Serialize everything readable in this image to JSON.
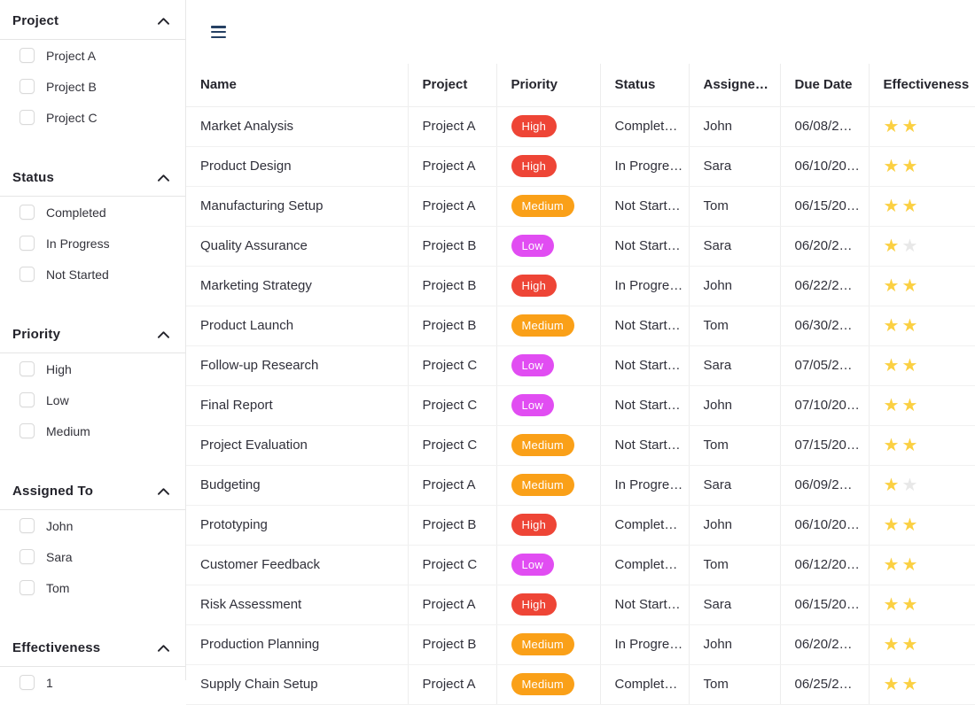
{
  "colors": {
    "priority_high": "#EE4536",
    "priority_medium": "#FAA018",
    "priority_low": "#E14DF2",
    "star_gold": "#FBD042",
    "star_inactive": "#E8E8E8",
    "menu_icon": "#254063",
    "divider": "#E5E5E5"
  },
  "icons": {
    "star": "★",
    "section_chevron": "chevron-up",
    "menu": "hamburger"
  },
  "topbar": {
    "menu_button": "menu"
  },
  "sidebar": {
    "sections": [
      {
        "title": "Project",
        "items": [
          {
            "label": "Project A",
            "checked": false
          },
          {
            "label": "Project B",
            "checked": false
          },
          {
            "label": "Project C",
            "checked": false
          }
        ]
      },
      {
        "title": "Status",
        "items": [
          {
            "label": "Completed",
            "checked": false
          },
          {
            "label": "In Progress",
            "checked": false
          },
          {
            "label": "Not Started",
            "checked": false
          }
        ]
      },
      {
        "title": "Priority",
        "items": [
          {
            "label": "High",
            "checked": false
          },
          {
            "label": "Low",
            "checked": false
          },
          {
            "label": "Medium",
            "checked": false
          }
        ]
      },
      {
        "title": "Assigned To",
        "items": [
          {
            "label": "John",
            "checked": false
          },
          {
            "label": "Sara",
            "checked": false
          },
          {
            "label": "Tom",
            "checked": false
          }
        ]
      },
      {
        "title": "Effectiveness",
        "items": [
          {
            "label": "1",
            "checked": false
          }
        ]
      }
    ]
  },
  "table": {
    "columns": [
      "Name",
      "Project",
      "Priority",
      "Status",
      "Assigne…",
      "Due Date",
      "Effectiveness"
    ],
    "rows": [
      {
        "name": "Market Analysis",
        "project": "Project A",
        "priority": "High",
        "status": "Complet…",
        "assignee": "John",
        "due": "06/08/2…",
        "stars": [
          "gold",
          "gold"
        ]
      },
      {
        "name": "Product Design",
        "project": "Project A",
        "priority": "High",
        "status": "In Progre…",
        "assignee": "Sara",
        "due": "06/10/20…",
        "stars": [
          "gold",
          "gold"
        ]
      },
      {
        "name": "Manufacturing Setup",
        "project": "Project A",
        "priority": "Medium",
        "status": "Not Start…",
        "assignee": "Tom",
        "due": "06/15/20…",
        "stars": [
          "gold",
          "gold"
        ]
      },
      {
        "name": "Quality Assurance",
        "project": "Project B",
        "priority": "Low",
        "status": "Not Start…",
        "assignee": "Sara",
        "due": "06/20/2…",
        "stars": [
          "gold",
          "gray"
        ]
      },
      {
        "name": "Marketing Strategy",
        "project": "Project B",
        "priority": "High",
        "status": "In Progre…",
        "assignee": "John",
        "due": "06/22/2…",
        "stars": [
          "gold",
          "gold"
        ]
      },
      {
        "name": "Product Launch",
        "project": "Project B",
        "priority": "Medium",
        "status": "Not Start…",
        "assignee": "Tom",
        "due": "06/30/2…",
        "stars": [
          "gold",
          "gold"
        ]
      },
      {
        "name": "Follow-up Research",
        "project": "Project C",
        "priority": "Low",
        "status": "Not Start…",
        "assignee": "Sara",
        "due": "07/05/2…",
        "stars": [
          "gold",
          "gold"
        ]
      },
      {
        "name": "Final Report",
        "project": "Project C",
        "priority": "Low",
        "status": "Not Start…",
        "assignee": "John",
        "due": "07/10/20…",
        "stars": [
          "gold",
          "gold"
        ]
      },
      {
        "name": "Project Evaluation",
        "project": "Project C",
        "priority": "Medium",
        "status": "Not Start…",
        "assignee": "Tom",
        "due": "07/15/20…",
        "stars": [
          "gold",
          "gold"
        ]
      },
      {
        "name": "Budgeting",
        "project": "Project A",
        "priority": "Medium",
        "status": "In Progre…",
        "assignee": "Sara",
        "due": "06/09/2…",
        "stars": [
          "gold",
          "gray"
        ]
      },
      {
        "name": "Prototyping",
        "project": "Project B",
        "priority": "High",
        "status": "Complet…",
        "assignee": "John",
        "due": "06/10/20…",
        "stars": [
          "gold",
          "gold"
        ]
      },
      {
        "name": "Customer Feedback",
        "project": "Project C",
        "priority": "Low",
        "status": "Complet…",
        "assignee": "Tom",
        "due": "06/12/20…",
        "stars": [
          "gold",
          "gold"
        ]
      },
      {
        "name": "Risk Assessment",
        "project": "Project A",
        "priority": "High",
        "status": "Not Start…",
        "assignee": "Sara",
        "due": "06/15/20…",
        "stars": [
          "gold",
          "gold"
        ]
      },
      {
        "name": "Production Planning",
        "project": "Project B",
        "priority": "Medium",
        "status": "In Progre…",
        "assignee": "John",
        "due": "06/20/2…",
        "stars": [
          "gold",
          "gold"
        ]
      },
      {
        "name": "Supply Chain Setup",
        "project": "Project A",
        "priority": "Medium",
        "status": "Complet…",
        "assignee": "Tom",
        "due": "06/25/2…",
        "stars": [
          "gold",
          "gold"
        ]
      }
    ]
  }
}
